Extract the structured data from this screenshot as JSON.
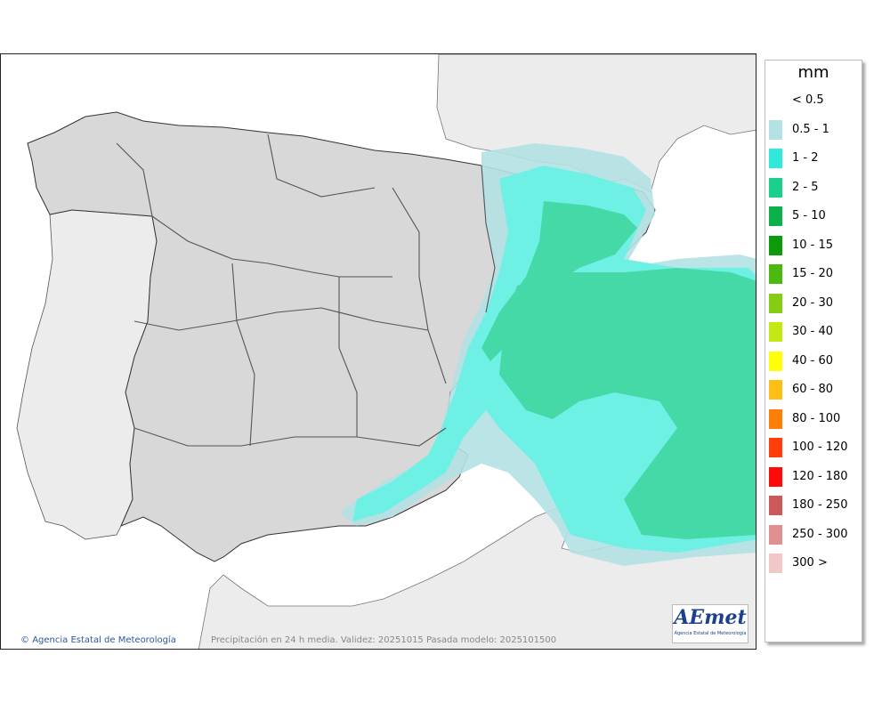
{
  "legend": {
    "unit": "mm",
    "items": [
      {
        "label": "< 0.5",
        "color": null
      },
      {
        "label": "0.5 - 1",
        "color": "#b4e1e4"
      },
      {
        "label": "1 - 2",
        "color": "#2ee9d8"
      },
      {
        "label": "2 - 5",
        "color": "#1ad08a"
      },
      {
        "label": "5 - 10",
        "color": "#0db14b"
      },
      {
        "label": "10 - 15",
        "color": "#0a9a0a"
      },
      {
        "label": "15 - 20",
        "color": "#4cb810"
      },
      {
        "label": "20 - 30",
        "color": "#86cc12"
      },
      {
        "label": "30 - 40",
        "color": "#c4e814"
      },
      {
        "label": "40 - 60",
        "color": "#ffff0a"
      },
      {
        "label": "60 - 80",
        "color": "#ffbe14"
      },
      {
        "label": "80 - 100",
        "color": "#ff7e0a"
      },
      {
        "label": "100 - 120",
        "color": "#ff3e0a"
      },
      {
        "label": "120 - 180",
        "color": "#ff0a0a"
      },
      {
        "label": "180 - 250",
        "color": "#cd5a5a"
      },
      {
        "label": "250 - 300",
        "color": "#e09090"
      },
      {
        "label": "300 >",
        "color": "#f0c8c8"
      }
    ]
  },
  "credit": "Agencia Estatal de Meteorología",
  "footer": "Precipitación en 24 h media. Validez: 20251015 Pasada modelo: 2025101500",
  "logo": {
    "main": "AEmet",
    "sub": "Agencia Estatal de Meteorología"
  },
  "colors": {
    "sea": "#ffffff",
    "foreign_land": "#ececec",
    "iberia_land": "#d8d8d8",
    "border": "#333333",
    "light_precip": "#b4e1e4",
    "moderate_precip": "#6ef0e4",
    "heavy_precip": "#46d9a8"
  }
}
